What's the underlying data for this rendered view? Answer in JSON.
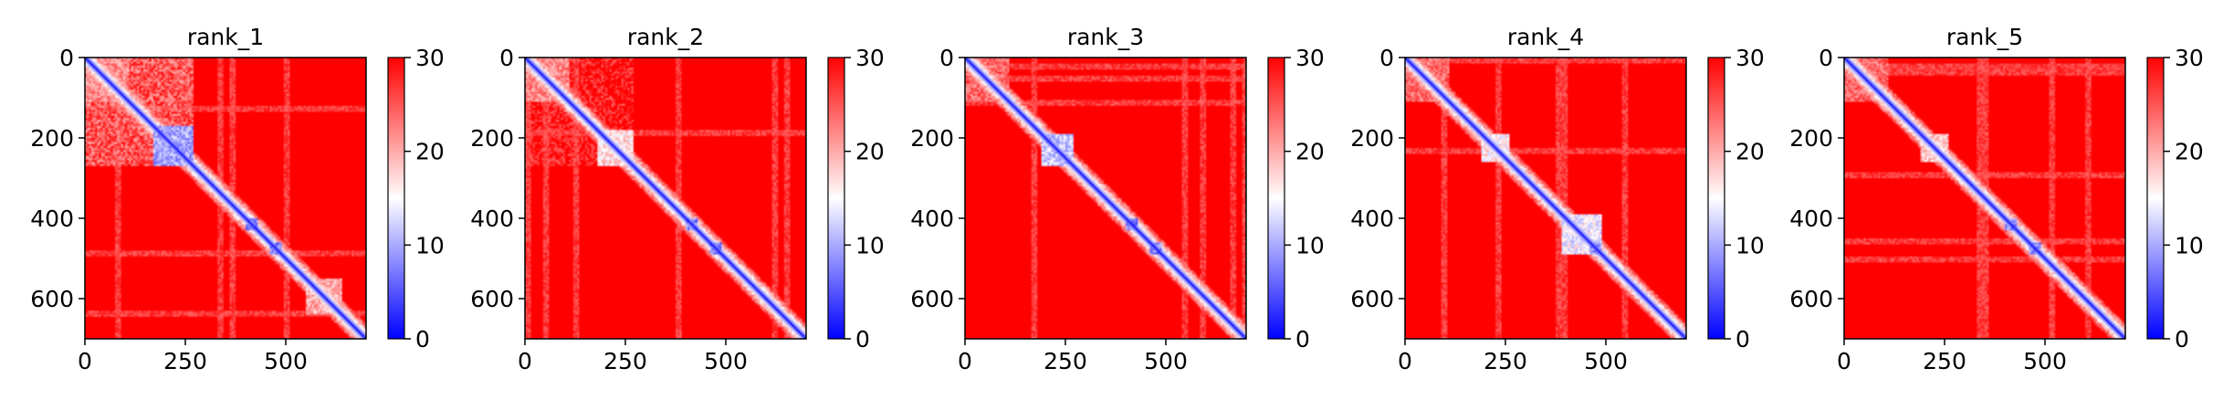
{
  "chart_data": [
    {
      "type": "heatmap",
      "title": "rank_1",
      "matrix_size": 700,
      "x_ticks": [
        0,
        250,
        500
      ],
      "y_ticks": [
        0,
        200,
        400,
        600
      ],
      "colorbar": {
        "min": 0,
        "max": 30,
        "ticks": [
          0,
          10,
          20,
          30
        ],
        "colormap": "bwr"
      },
      "structure": {
        "blocks": [
          {
            "start": 170,
            "end": 270,
            "value": 6
          },
          {
            "start": 0,
            "end": 110,
            "value": 18
          },
          {
            "start": 400,
            "end": 430,
            "value": 4
          },
          {
            "start": 460,
            "end": 490,
            "value": 4
          },
          {
            "start": 550,
            "end": 640,
            "value": 16
          }
        ],
        "low_region": {
          "start": 0,
          "end": 270,
          "value": 20
        }
      }
    },
    {
      "type": "heatmap",
      "title": "rank_2",
      "matrix_size": 700,
      "x_ticks": [
        0,
        250,
        500
      ],
      "y_ticks": [
        0,
        200,
        400,
        600
      ],
      "colorbar": {
        "min": 0,
        "max": 30,
        "ticks": [
          0,
          10,
          20,
          30
        ],
        "colormap": "bwr"
      },
      "structure": {
        "blocks": [
          {
            "start": 180,
            "end": 270,
            "value": 13
          },
          {
            "start": 0,
            "end": 110,
            "value": 18
          },
          {
            "start": 400,
            "end": 430,
            "value": 4
          },
          {
            "start": 460,
            "end": 490,
            "value": 4
          }
        ],
        "low_region": {
          "start": 0,
          "end": 270,
          "value": 24
        }
      }
    },
    {
      "type": "heatmap",
      "title": "rank_3",
      "matrix_size": 700,
      "x_ticks": [
        0,
        250,
        500
      ],
      "y_ticks": [
        0,
        200,
        400,
        600
      ],
      "colorbar": {
        "min": 0,
        "max": 30,
        "ticks": [
          0,
          10,
          20,
          30
        ],
        "colormap": "bwr"
      },
      "structure": {
        "blocks": [
          {
            "start": 190,
            "end": 270,
            "value": 8
          },
          {
            "start": 0,
            "end": 110,
            "value": 20
          },
          {
            "start": 400,
            "end": 430,
            "value": 4
          },
          {
            "start": 460,
            "end": 490,
            "value": 4
          }
        ],
        "low_region": {
          "start": 0,
          "end": 0,
          "value": 30
        }
      }
    },
    {
      "type": "heatmap",
      "title": "rank_4",
      "matrix_size": 700,
      "x_ticks": [
        0,
        250,
        500
      ],
      "y_ticks": [
        0,
        200,
        400,
        600
      ],
      "colorbar": {
        "min": 0,
        "max": 30,
        "ticks": [
          0,
          10,
          20,
          30
        ],
        "colormap": "bwr"
      },
      "structure": {
        "blocks": [
          {
            "start": 190,
            "end": 260,
            "value": 12
          },
          {
            "start": 0,
            "end": 110,
            "value": 20
          },
          {
            "start": 390,
            "end": 490,
            "value": 10
          },
          {
            "start": 460,
            "end": 490,
            "value": 4
          }
        ],
        "low_region": {
          "start": 0,
          "end": 0,
          "value": 30
        }
      }
    },
    {
      "type": "heatmap",
      "title": "rank_5",
      "matrix_size": 700,
      "x_ticks": [
        0,
        250,
        500
      ],
      "y_ticks": [
        0,
        200,
        400,
        600
      ],
      "colorbar": {
        "min": 0,
        "max": 30,
        "ticks": [
          0,
          10,
          20,
          30
        ],
        "colormap": "bwr"
      },
      "structure": {
        "blocks": [
          {
            "start": 190,
            "end": 260,
            "value": 14
          },
          {
            "start": 0,
            "end": 110,
            "value": 20
          },
          {
            "start": 400,
            "end": 430,
            "value": 5
          },
          {
            "start": 460,
            "end": 490,
            "value": 5
          }
        ],
        "low_region": {
          "start": 0,
          "end": 0,
          "value": 30
        }
      }
    }
  ]
}
